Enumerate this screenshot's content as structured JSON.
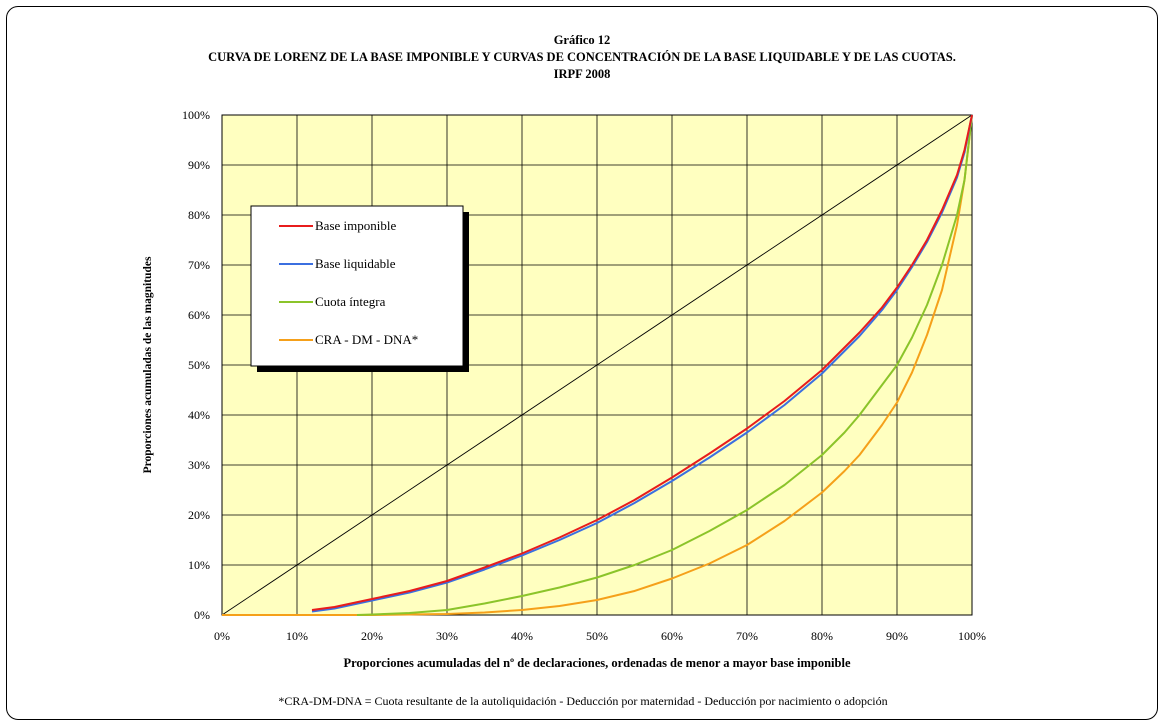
{
  "chart_data": {
    "type": "line",
    "title_lines": [
      "Gráfico 12",
      "CURVA DE LORENZ DE LA BASE IMPONIBLE Y CURVAS DE CONCENTRACIÓN DE LA BASE LIQUIDABLE Y DE LAS CUOTAS.",
      "IRPF 2008"
    ],
    "xlabel": "Proporciones acumuladas del nº de declaraciones, ordenadas de menor a mayor base imponible",
    "ylabel": "Proporciones acumuladas de las magnitudes",
    "footnote": "*CRA-DM-DNA = Cuota resultante de la autoliquidación - Deducción por maternidad - Deducción por nacimiento o adopción",
    "xlim": [
      0,
      100
    ],
    "ylim": [
      0,
      100
    ],
    "x_ticks": [
      "0%",
      "10%",
      "20%",
      "30%",
      "40%",
      "50%",
      "60%",
      "70%",
      "80%",
      "90%",
      "100%"
    ],
    "y_ticks": [
      "0%",
      "10%",
      "20%",
      "30%",
      "40%",
      "50%",
      "60%",
      "70%",
      "80%",
      "90%",
      "100%"
    ],
    "grid": true,
    "plot_background": "#ffffc0",
    "legend_position": "upper-left",
    "equality_line": {
      "x": [
        0,
        100
      ],
      "y": [
        0,
        100
      ],
      "color": "#000000"
    },
    "series": [
      {
        "name": "Base imponible",
        "color": "#e81c1c",
        "x": [
          12,
          15,
          20,
          25,
          30,
          35,
          40,
          45,
          50,
          55,
          60,
          65,
          70,
          75,
          80,
          85,
          88,
          90,
          92,
          94,
          96,
          98,
          99,
          100
        ],
        "y": [
          1,
          1.6,
          3.2,
          4.8,
          6.8,
          9.5,
          12.3,
          15.5,
          19,
          23,
          27.5,
          32.3,
          37.3,
          42.8,
          49,
          56.5,
          61.5,
          65.5,
          70,
          75,
          81,
          88,
          93,
          100
        ]
      },
      {
        "name": "Base liquidable",
        "color": "#3b6fe0",
        "x": [
          12,
          15,
          20,
          25,
          30,
          35,
          40,
          45,
          50,
          55,
          60,
          65,
          70,
          75,
          80,
          85,
          88,
          90,
          92,
          94,
          96,
          98,
          99,
          100
        ],
        "y": [
          0.7,
          1.3,
          2.9,
          4.5,
          6.5,
          9.1,
          11.9,
          15,
          18.4,
          22.4,
          26.8,
          31.5,
          36.5,
          42,
          48.3,
          55.8,
          61,
          65,
          69.6,
          74.6,
          80.5,
          87.5,
          92.5,
          100
        ]
      },
      {
        "name": "Cuota íntegra",
        "color": "#8bc42a",
        "x": [
          18,
          20,
          25,
          30,
          35,
          40,
          45,
          50,
          55,
          60,
          65,
          70,
          75,
          80,
          83,
          85,
          88,
          90,
          92,
          94,
          96,
          98,
          99,
          100
        ],
        "y": [
          0,
          0.1,
          0.4,
          1,
          2.3,
          3.8,
          5.5,
          7.5,
          10,
          13,
          16.8,
          21,
          26,
          32,
          36.5,
          40,
          46,
          50,
          55.5,
          62,
          70,
          80,
          87,
          100
        ]
      },
      {
        "name": "CRA - DM - DNA*",
        "color": "#f5a01a",
        "x": [
          0,
          10,
          20,
          30,
          35,
          40,
          45,
          50,
          55,
          60,
          65,
          70,
          75,
          80,
          83,
          85,
          88,
          90,
          92,
          94,
          96,
          98,
          99,
          100
        ],
        "y": [
          0,
          0,
          0,
          0.2,
          0.5,
          1,
          1.8,
          3,
          4.8,
          7.3,
          10.3,
          14,
          18.8,
          24.5,
          28.8,
          32,
          38,
          42.5,
          48.5,
          56,
          65,
          78,
          87,
          100
        ]
      }
    ]
  }
}
